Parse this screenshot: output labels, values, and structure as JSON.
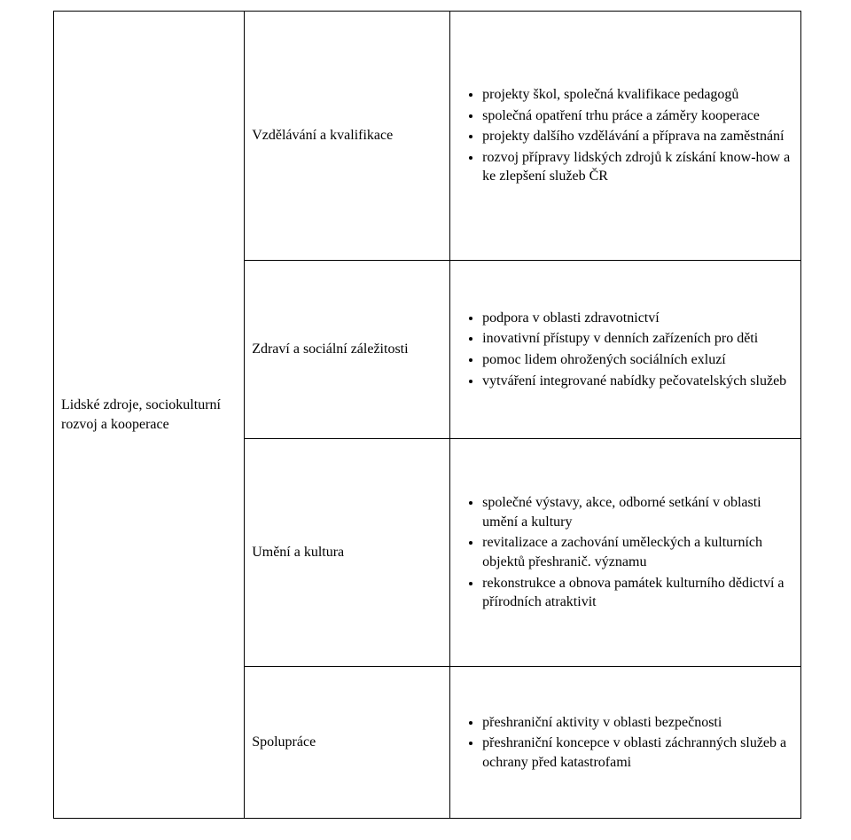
{
  "colors": {
    "background": "#ffffff",
    "text": "#000000",
    "border": "#000000"
  },
  "typography": {
    "family": "Times New Roman",
    "base_size_pt": 12,
    "weight": "normal"
  },
  "table": {
    "columns": [
      {
        "key": "topic_group",
        "width_pct": 25.5
      },
      {
        "key": "subtopic",
        "width_pct": 27.5
      },
      {
        "key": "details",
        "width_pct": 47
      }
    ],
    "topic_group": "Lidské zdroje, sociokulturní rozvoj a kooperace",
    "rows": [
      {
        "subtopic": "Vzdělávání a kvalifikace",
        "details": [
          "projekty škol, společná kvalifikace pedagogů",
          "společná opatření trhu práce a záměry kooperace",
          "projekty dalšího vzdělávání a příprava na zaměstnání",
          "rozvoj přípravy lidských zdrojů k získání know-how a ke zlepšení služeb ČR"
        ]
      },
      {
        "subtopic": "Zdraví a sociální záležitosti",
        "details": [
          "podpora v oblasti zdravotnictví",
          "inovativní přístupy v denních zařízeních pro děti",
          "pomoc lidem ohrožených sociálních exluzí",
          "vytváření integrované nabídky pečovatelských služeb"
        ]
      },
      {
        "subtopic": "Umění a kultura",
        "details": [
          "společné výstavy, akce, odborné setkání v oblasti umění a kultury",
          "revitalizace a zachování uměleckých a kulturních objektů přeshranič. významu",
          "rekonstrukce a obnova památek kulturního dědictví a přírodních atraktivit"
        ]
      },
      {
        "subtopic": "Spolupráce",
        "details": [
          "přeshraniční aktivity v oblasti bezpečnosti",
          "přeshraniční koncepce v oblasti záchranných služeb a ochrany před katastrofami"
        ]
      }
    ]
  }
}
